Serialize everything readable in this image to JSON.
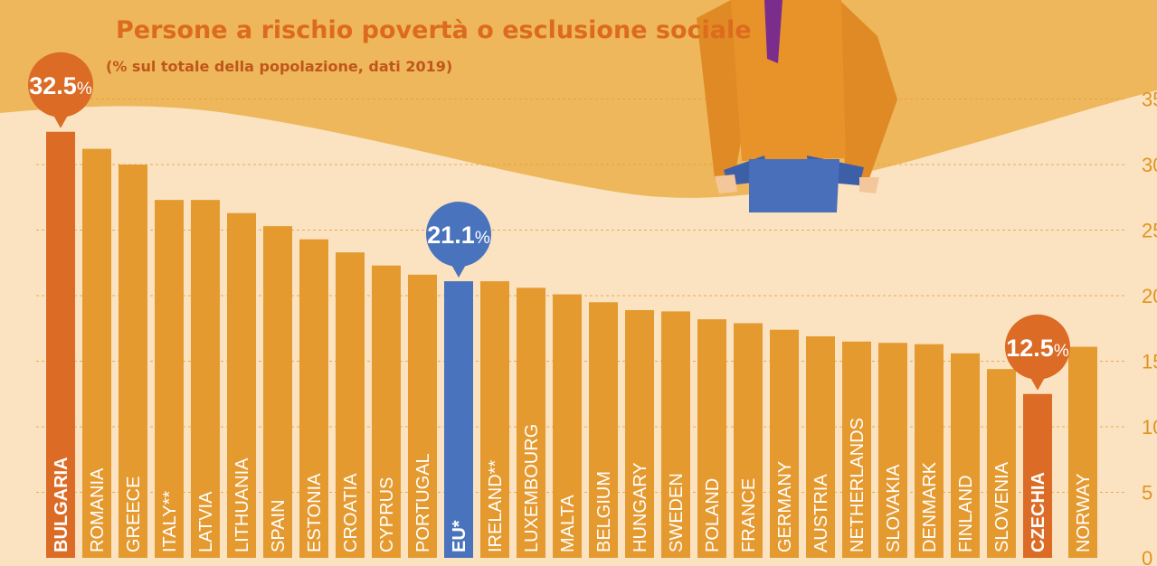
{
  "title": "Persone a rischio povertà o esclusione sociale",
  "subtitle": "(% sul totale della popolazione, dati 2019)",
  "colors": {
    "bar": "#e59a30",
    "highlight": "#db6b25",
    "eu": "#4a73bd",
    "background": "#fbe3c1",
    "wave": "#eeb75b",
    "grid": "#e0a03a"
  },
  "chart_data": {
    "type": "bar",
    "title": "Persone a rischio povertà o esclusione sociale",
    "subtitle": "(% sul totale della popolazione, dati 2019)",
    "xlabel": "",
    "ylabel": "",
    "ylim": [
      0,
      35
    ],
    "yticks": [
      "0",
      "5",
      "10",
      "15",
      "20",
      "25",
      "30",
      "35"
    ],
    "grid": true,
    "categories": [
      "BULGARIA",
      "ROMANIA",
      "GREECE",
      "ITALY**",
      "LATVIA",
      "LITHUANIA",
      "SPAIN",
      "ESTONIA",
      "CROATIA",
      "CYPRUS",
      "PORTUGAL",
      "EU*",
      "IRELAND**",
      "LUXEMBOURG",
      "MALTA",
      "BELGIUM",
      "HUNGARY",
      "SWEDEN",
      "POLAND",
      "FRANCE",
      "GERMANY",
      "AUSTRIA",
      "NETHERLANDS",
      "SLOVAKIA",
      "DENMARK",
      "FINLAND",
      "SLOVENIA",
      "CZECHIA",
      "NORWAY"
    ],
    "values": [
      32.5,
      31.2,
      30.0,
      27.3,
      27.3,
      26.3,
      25.3,
      24.3,
      23.3,
      22.3,
      21.6,
      21.1,
      21.1,
      20.6,
      20.1,
      19.5,
      18.9,
      18.8,
      18.2,
      17.9,
      17.4,
      16.9,
      16.5,
      16.4,
      16.3,
      15.6,
      14.4,
      12.5,
      16.1
    ],
    "highlighted": [
      "BULGARIA",
      "CZECHIA"
    ],
    "eu_category": "EU*",
    "callouts": [
      {
        "category": "BULGARIA",
        "value": "32.5",
        "suffix": "%"
      },
      {
        "category": "EU*",
        "value": "21.1",
        "suffix": "%"
      },
      {
        "category": "CZECHIA",
        "value": "12.5",
        "suffix": "%"
      }
    ]
  }
}
